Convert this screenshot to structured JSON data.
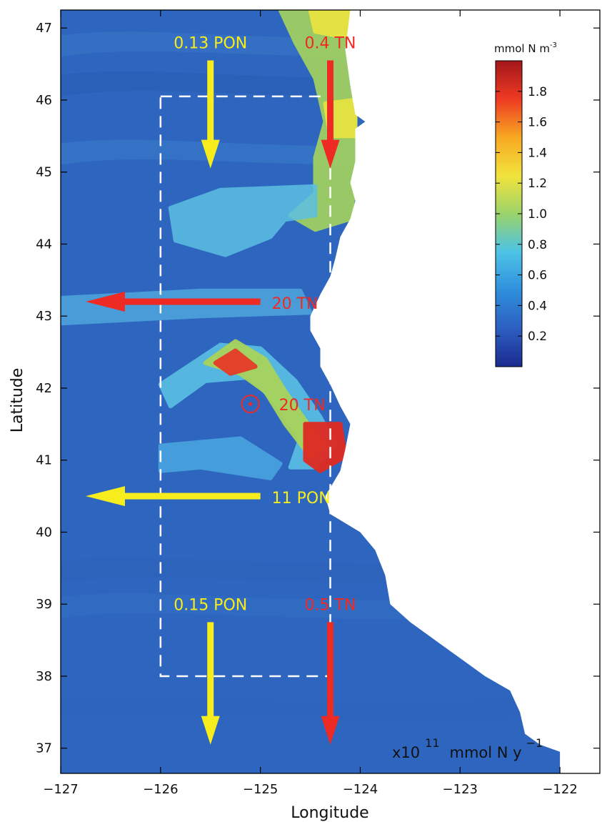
{
  "axes": {
    "xlabel": "Longitude",
    "ylabel": "Latitude",
    "xlim": [
      -127,
      -121.6
    ],
    "ylim": [
      36.65,
      47.25
    ],
    "xticks": [
      {
        "value": -127,
        "label": "−127"
      },
      {
        "value": -126,
        "label": "−126"
      },
      {
        "value": -125,
        "label": "−125"
      },
      {
        "value": -124,
        "label": "−124"
      },
      {
        "value": -123,
        "label": "−123"
      },
      {
        "value": -122,
        "label": "−122"
      }
    ],
    "yticks": [
      {
        "value": 37,
        "label": "37"
      },
      {
        "value": 38,
        "label": "38"
      },
      {
        "value": 39,
        "label": "39"
      },
      {
        "value": 40,
        "label": "40"
      },
      {
        "value": 41,
        "label": "41"
      },
      {
        "value": 42,
        "label": "42"
      },
      {
        "value": 43,
        "label": "43"
      },
      {
        "value": 44,
        "label": "44"
      },
      {
        "value": 45,
        "label": "45"
      },
      {
        "value": 46,
        "label": "46"
      },
      {
        "value": 47,
        "label": "47"
      }
    ]
  },
  "colorbar": {
    "title_base": "mmol N m",
    "title_exp": "-3",
    "range": [
      0,
      2
    ],
    "ticks": [
      {
        "value": 0.2,
        "label": "0.2"
      },
      {
        "value": 0.4,
        "label": "0.4"
      },
      {
        "value": 0.6,
        "label": "0.6"
      },
      {
        "value": 0.8,
        "label": "0.8"
      },
      {
        "value": 1.0,
        "label": "1.0"
      },
      {
        "value": 1.2,
        "label": "1.2"
      },
      {
        "value": 1.4,
        "label": "1.4"
      },
      {
        "value": 1.6,
        "label": "1.6"
      },
      {
        "value": 1.8,
        "label": "1.8"
      }
    ],
    "colors": [
      "#1b2a8f",
      "#2c5fc0",
      "#2f8fdc",
      "#4cc3e6",
      "#9bd36a",
      "#f2e33c",
      "#f7a822",
      "#ee3a22",
      "#a3171b"
    ]
  },
  "unit_note": {
    "base": "x10",
    "exp": "11",
    "unit": "mmol N y",
    "unit_exp": "−1"
  },
  "control_box": {
    "lon_min": -126,
    "lon_max": -124.3,
    "lat_min": 38,
    "lat_max": 46.05
  },
  "fluxes": [
    {
      "label": "0.13 PON",
      "color": "#f7ec1c",
      "lon": -125.5,
      "lat_from": 46.55,
      "lat_to": 45.05,
      "direction": "south"
    },
    {
      "label": "0.4 TN",
      "color": "#ee2a24",
      "lon": -124.3,
      "lat_from": 46.55,
      "lat_to": 45.05,
      "direction": "south"
    },
    {
      "label": "20 TN",
      "color": "#ee2a24",
      "lat": 43.2,
      "lon_from": -125.0,
      "lon_to": -126.75,
      "direction": "west"
    },
    {
      "label": "20 TN",
      "color": "#ee2a24",
      "lon": -125.1,
      "lat": 41.78,
      "direction": "vertical-out"
    },
    {
      "label": "11 PON",
      "color": "#f7ec1c",
      "lat": 40.5,
      "lon_from": -125.0,
      "lon_to": -126.75,
      "direction": "west"
    },
    {
      "label": "0.15 PON",
      "color": "#f7ec1c",
      "lon": -125.5,
      "lat_from": 38.75,
      "lat_to": 37.05,
      "direction": "south"
    },
    {
      "label": "0.5 TN",
      "color": "#ee2a24",
      "lon": -124.3,
      "lat_from": 38.75,
      "lat_to": 37.05,
      "direction": "south"
    }
  ],
  "coast": [
    [
      -124.1,
      47.25
    ],
    [
      -124.15,
      46.7
    ],
    [
      -124.1,
      46.2
    ],
    [
      -124.05,
      45.8
    ],
    [
      -123.95,
      45.7
    ],
    [
      -124.05,
      45.6
    ],
    [
      -124.05,
      45.15
    ],
    [
      -124.1,
      44.85
    ],
    [
      -124.05,
      44.6
    ],
    [
      -124.1,
      44.35
    ],
    [
      -124.2,
      44.1
    ],
    [
      -124.25,
      43.8
    ],
    [
      -124.3,
      43.55
    ],
    [
      -124.4,
      43.3
    ],
    [
      -124.5,
      43.0
    ],
    [
      -124.5,
      42.8
    ],
    [
      -124.4,
      42.55
    ],
    [
      -124.4,
      42.3
    ],
    [
      -124.3,
      42.05
    ],
    [
      -124.2,
      41.75
    ],
    [
      -124.1,
      41.5
    ],
    [
      -124.15,
      41.15
    ],
    [
      -124.2,
      40.85
    ],
    [
      -124.35,
      40.5
    ],
    [
      -124.3,
      40.25
    ],
    [
      -124.0,
      40.0
    ],
    [
      -123.85,
      39.75
    ],
    [
      -123.75,
      39.4
    ],
    [
      -123.7,
      39.0
    ],
    [
      -123.5,
      38.75
    ],
    [
      -123.25,
      38.5
    ],
    [
      -123.0,
      38.25
    ],
    [
      -122.75,
      38.0
    ],
    [
      -122.5,
      37.8
    ],
    [
      -122.4,
      37.5
    ],
    [
      -122.35,
      37.2
    ],
    [
      -122.2,
      37.05
    ],
    [
      -122.0,
      36.95
    ],
    [
      -122.0,
      36.65
    ]
  ],
  "features": [
    {
      "name": "plume-north",
      "kind": "plume",
      "color": "#9fcf62",
      "points": [
        [
          -124.1,
          47.25
        ],
        [
          -124.8,
          47.25
        ],
        [
          -124.65,
          46.8
        ],
        [
          -124.45,
          46.3
        ],
        [
          -124.35,
          45.7
        ],
        [
          -124.45,
          45.2
        ],
        [
          -124.45,
          44.7
        ],
        [
          -124.7,
          44.4
        ],
        [
          -124.45,
          44.2
        ],
        [
          -124.1,
          44.35
        ],
        [
          -124.05,
          44.9
        ],
        [
          -124.05,
          45.6
        ],
        [
          -124.05,
          46.3
        ]
      ]
    },
    {
      "name": "plume-north-yellow",
      "kind": "core",
      "color": "#e9e342",
      "points": [
        [
          -124.1,
          47.25
        ],
        [
          -124.5,
          47.25
        ],
        [
          -124.45,
          46.95
        ],
        [
          -124.25,
          46.9
        ],
        [
          -124.1,
          46.9
        ]
      ]
    },
    {
      "name": "plume-north-yellow-2",
      "kind": "core",
      "color": "#e6e343",
      "points": [
        [
          -124.05,
          46.0
        ],
        [
          -124.35,
          45.95
        ],
        [
          -124.3,
          45.5
        ],
        [
          -124.05,
          45.5
        ]
      ]
    },
    {
      "name": "filament-44",
      "kind": "filament",
      "color": "#5cc0e2",
      "points": [
        [
          -124.45,
          44.8
        ],
        [
          -125.4,
          44.75
        ],
        [
          -125.9,
          44.5
        ],
        [
          -125.85,
          44.05
        ],
        [
          -125.35,
          43.85
        ],
        [
          -124.9,
          44.1
        ],
        [
          -124.75,
          44.35
        ],
        [
          -125.1,
          44.55
        ],
        [
          -125.45,
          44.35
        ],
        [
          -125.5,
          44.15
        ],
        [
          -125.2,
          44.05
        ],
        [
          -124.95,
          44.3
        ],
        [
          -124.45,
          44.4
        ]
      ]
    },
    {
      "name": "filament-42-5",
      "kind": "filament",
      "color": "#5cc4e6",
      "points": [
        [
          -126.0,
          42.05
        ],
        [
          -125.4,
          42.6
        ],
        [
          -125.0,
          42.55
        ],
        [
          -124.65,
          42.1
        ],
        [
          -124.4,
          41.6
        ],
        [
          -124.25,
          41.2
        ],
        [
          -124.45,
          40.9
        ],
        [
          -124.7,
          40.9
        ],
        [
          -124.6,
          41.3
        ],
        [
          -124.85,
          41.8
        ],
        [
          -125.1,
          42.15
        ],
        [
          -125.55,
          42.1
        ],
        [
          -125.9,
          41.75
        ]
      ]
    },
    {
      "name": "filament-42-green",
      "kind": "plume",
      "color": "#a8d35c",
      "points": [
        [
          -125.55,
          42.35
        ],
        [
          -125.25,
          42.65
        ],
        [
          -124.95,
          42.4
        ],
        [
          -124.75,
          41.95
        ],
        [
          -124.55,
          41.55
        ],
        [
          -124.35,
          41.2
        ],
        [
          -124.5,
          41.05
        ],
        [
          -124.75,
          41.5
        ],
        [
          -124.95,
          41.95
        ],
        [
          -125.2,
          42.2
        ]
      ]
    },
    {
      "name": "hot-spot-north",
      "kind": "core",
      "color": "#e63a28",
      "points": [
        [
          -125.45,
          42.35
        ],
        [
          -125.25,
          42.52
        ],
        [
          -125.05,
          42.3
        ],
        [
          -125.3,
          42.2
        ]
      ]
    },
    {
      "name": "hot-spot-south",
      "kind": "core",
      "color": "#e02a22",
      "points": [
        [
          -124.55,
          41.5
        ],
        [
          -124.2,
          41.5
        ],
        [
          -124.15,
          41.05
        ],
        [
          -124.4,
          40.85
        ],
        [
          -124.55,
          41.0
        ]
      ]
    },
    {
      "name": "filament-41",
      "kind": "filament",
      "color": "#4aa8e0",
      "points": [
        [
          -126.0,
          41.2
        ],
        [
          -125.2,
          41.3
        ],
        [
          -124.8,
          40.95
        ],
        [
          -124.9,
          40.75
        ],
        [
          -125.6,
          40.9
        ],
        [
          -126.0,
          40.85
        ]
      ]
    },
    {
      "name": "filament-43",
      "kind": "filament",
      "color": "#4ea6dc",
      "points": [
        [
          -127,
          43.25
        ],
        [
          -125.6,
          43.35
        ],
        [
          -124.6,
          43.35
        ],
        [
          -124.5,
          43.05
        ],
        [
          -125.6,
          43.0
        ],
        [
          -127,
          42.9
        ]
      ]
    }
  ]
}
